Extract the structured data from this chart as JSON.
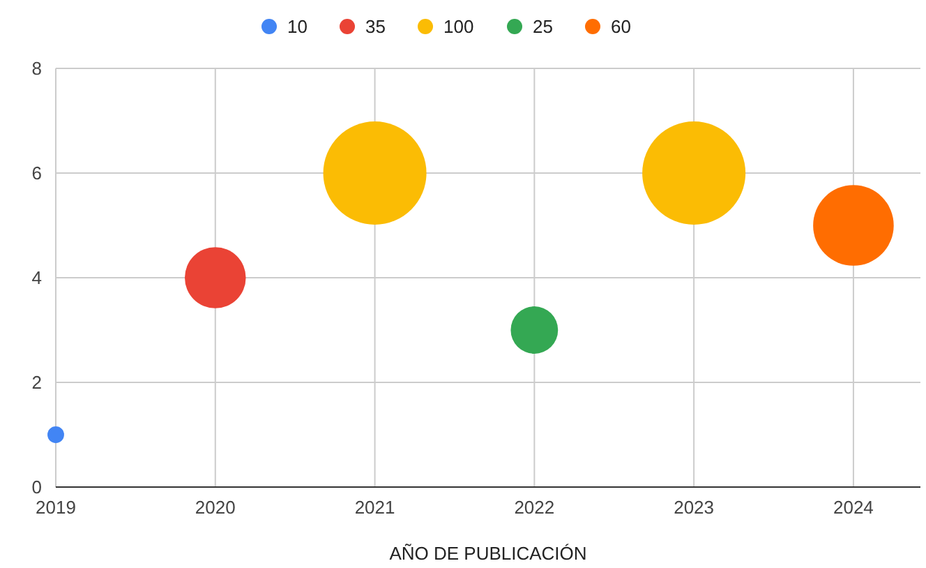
{
  "chart_data": {
    "type": "bubble",
    "xlabel": "AÑO DE PUBLICACIÓN",
    "xlim": [
      2019,
      2024.42
    ],
    "xticks": [
      2019,
      2020,
      2021,
      2022,
      2023,
      2024
    ],
    "ylim": [
      0,
      8
    ],
    "yticks": [
      0,
      2,
      4,
      6,
      8
    ],
    "grid": true,
    "legend": "top",
    "series": [
      {
        "name": "10",
        "color": "#4285f4",
        "x": [
          2019
        ],
        "values": [
          1
        ],
        "sizes": [
          0.026
        ]
      },
      {
        "name": "35",
        "color": "#ea4335",
        "x": [
          2020
        ],
        "values": [
          4
        ],
        "sizes": [
          0.35
        ]
      },
      {
        "name": "100",
        "color": "#fbbc04",
        "x": [
          2021,
          2023
        ],
        "values": [
          6,
          6
        ],
        "sizes": [
          1,
          1
        ]
      },
      {
        "name": "25",
        "color": "#34a853",
        "x": [
          2022
        ],
        "values": [
          3
        ],
        "sizes": [
          0.21
        ]
      },
      {
        "name": "60",
        "color": "#ff6d01",
        "x": [
          2024
        ],
        "values": [
          5
        ],
        "sizes": [
          0.61
        ]
      }
    ]
  }
}
